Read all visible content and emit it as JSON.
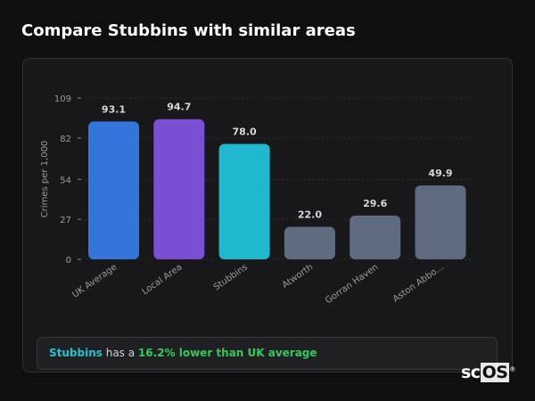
{
  "title": "Compare Stubbins with similar areas",
  "chart_data": {
    "type": "bar",
    "title": "Compare Stubbins with similar areas",
    "xlabel": "",
    "ylabel": "Crimes per 1,000",
    "ylim": [
      0,
      109
    ],
    "yticks": [
      0,
      27,
      54,
      82,
      109
    ],
    "grid": true,
    "categories": [
      "UK Average",
      "Local Area",
      "Stubbins",
      "Atworth",
      "Gorran Haven",
      "Aston Abbo..."
    ],
    "values": [
      93.1,
      94.7,
      78.0,
      22.0,
      29.6,
      49.9
    ],
    "data_labels": [
      "93.1",
      "94.7",
      "78.0",
      "22.0",
      "29.6",
      "49.9"
    ],
    "colors": [
      "#3574db",
      "#7b4fd4",
      "#20b8cf",
      "#5f6b7f",
      "#5f6b7f",
      "#5f6b7f"
    ]
  },
  "summary": {
    "entity": "Stubbins",
    "middle": " has a ",
    "highlight": "16.2% lower than UK average"
  },
  "logo": {
    "prefix": "sc",
    "boxed": "OS",
    "mark": "®"
  }
}
